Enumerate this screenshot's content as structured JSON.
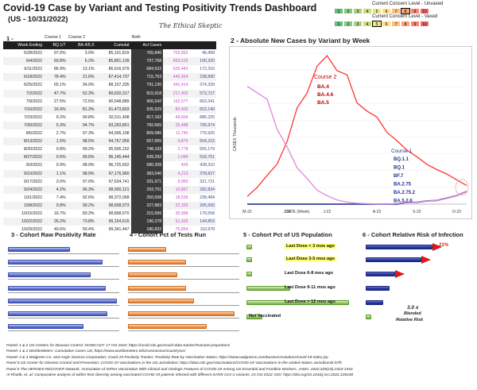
{
  "header": {
    "title": "Covid-19 Case by Variant and Testing Positivity Trends Dashboard",
    "subtitle": "(US - 10/31/2022)",
    "brand": "The Ethical Skeptic"
  },
  "concern_legend": {
    "unvaxed_label": "Current Concern Level - Unvaxed",
    "vaxed_label": "Current Concern Level - Vaxed",
    "unvaxed_cells": [
      "1",
      "2",
      "3",
      "4",
      "5",
      "6",
      "7",
      "8",
      "9",
      "10"
    ],
    "vaxed_cells": [
      "1",
      "2",
      "3",
      "4",
      "5",
      "6",
      "7",
      "8",
      "9",
      "10"
    ],
    "unvaxed_colors": [
      "#63be7b",
      "#86c97e",
      "#a9d27f",
      "#cbdc81",
      "#eee683",
      "#ffdd82",
      "#fdbf7b",
      "#fba276",
      "#f98570",
      "#f8696b"
    ],
    "vaxed_colors": [
      "#63be7b",
      "#86c97e",
      "#a9d27f",
      "#cbdc81",
      "#eee683",
      "#ffdd82",
      "#fdbf7b",
      "#fba276",
      "#f98570",
      "#f8696b"
    ],
    "unvaxed_marker": 8,
    "vaxed_marker": 5
  },
  "section1": {
    "label": "1 -",
    "group_headers": [
      "Course 1",
      "Course 2",
      "Both"
    ],
    "columns": [
      "Week Ending",
      "BQ.1/7",
      "BA.4/5.X",
      "Cumulat",
      "Act Cases",
      "",
      ""
    ],
    "rows": [
      [
        "5/28/2022",
        "97.0%",
        "3.0%",
        "85,101,819",
        "765,840",
        "702,862",
        "46,458"
      ],
      [
        "6/4/2022",
        "93.8%",
        "6.2%",
        "85,851,139",
        "797,758",
        "663,515",
        "100,325"
      ],
      [
        "6/11/2022",
        "86.9%",
        "13.1%",
        "86,616,979",
        "684,522",
        "625,442",
        "172,316"
      ],
      [
        "6/18/2022",
        "78.4%",
        "21.6%",
        "87,414,737",
        "715,753",
        "445,924",
        "238,890"
      ],
      [
        "6/25/2022",
        "65.1%",
        "34.9%",
        "88,107,335",
        "791,130",
        "341,414",
        "374,339"
      ],
      [
        "7/2/2022",
        "47.7%",
        "52.3%",
        "89,620,317",
        "815,918",
        "217,402",
        "573,727"
      ],
      [
        "7/9/2022",
        "27.5%",
        "72.5%",
        "90,548,889",
        "906,542",
        "152,577",
        "663,341"
      ],
      [
        "7/16/2022",
        "16.9%",
        "81.3%",
        "91,473,803",
        "935,929",
        "83,402",
        "823,140"
      ],
      [
        "7/23/2022",
        "9.2%",
        "90.8%",
        "92,511,408",
        "817,162",
        "49,604",
        "886,325"
      ],
      [
        "7/30/2022",
        "5.3%",
        "94.7%",
        "93,293,851",
        "782,665",
        "25,488",
        "795,974"
      ],
      [
        "8/6/2022",
        "2.7%",
        "97.3%",
        "94,006,108",
        "809,086",
        "11,740",
        "770,925"
      ],
      [
        "8/13/2022",
        "1.5%",
        "98.5%",
        "94,757,959",
        "557,955",
        "4,875",
        "604,223"
      ],
      [
        "8/20/2022",
        "0.8%",
        "99.2%",
        "95,506,152",
        "748,193",
        "2,778",
        "555,179"
      ],
      [
        "8/27/2022",
        "0.5%",
        "99.5%",
        "96,145,444",
        "639,292",
        "1,049",
        "518,751"
      ],
      [
        "9/3/2022",
        "0.9%",
        "98.9%",
        "96,725,652",
        "580,208",
        "429",
        "428,310"
      ],
      [
        "9/10/2022",
        "1.1%",
        "98.9%",
        "97,176,960",
        "383,040",
        "4,213",
        "378,827"
      ],
      [
        "9/17/2022",
        "3.0%",
        "97.0%",
        "97,634,741",
        "331,671",
        "9,950",
        "321,721"
      ],
      [
        "9/24/2022",
        "4.2%",
        "96.3%",
        "98,000,121",
        "293,701",
        "10,867",
        "282,834"
      ],
      [
        "10/1/2022",
        "7.4%",
        "92.6%",
        "98,372,068",
        "250,508",
        "18,539",
        "238,484"
      ],
      [
        "10/8/2022",
        "9.8%",
        "90.2%",
        "98,658,073",
        "227,883",
        "22,333",
        "205,550"
      ],
      [
        "10/15/2022",
        "16.7%",
        "83.3%",
        "98,898,670",
        "215,556",
        "35,998",
        "179,558"
      ],
      [
        "10/22/2022",
        "26.2%",
        "73.8%",
        "99,154,615",
        "196,278",
        "51,425",
        "144,853"
      ],
      [
        "10/29/2022",
        "40.6%",
        "59.4%",
        "99,341,447",
        "186,832",
        "75,854",
        "110,978"
      ]
    ]
  },
  "section2": {
    "label": "2 - Absolute New Cases by Variant by Week",
    "ylabel": "CASES Thousands",
    "xlabel": "DATE (Week)",
    "course2_label": "Course 2",
    "course2_variants": [
      "BA.4",
      "BA.4.6",
      "BA.5"
    ],
    "course1_label": "Course 1",
    "course1_variants": [
      "BQ.1.1",
      "BQ.1",
      "BF.7",
      "BA.2.75",
      "BA.2.75.2",
      "BA.5.2.6"
    ],
    "tick_labels": [
      "M-22",
      "J-22",
      "J-22",
      "A-22",
      "S-22",
      "O-22"
    ]
  },
  "chart_data": {
    "type": "line",
    "x": [
      "5/28/2022",
      "6/4/2022",
      "6/11/2022",
      "6/18/2022",
      "6/25/2022",
      "7/2/2022",
      "7/9/2022",
      "7/16/2022",
      "7/23/2022",
      "7/30/2022",
      "8/6/2022",
      "8/13/2022",
      "8/20/2022",
      "8/27/2022",
      "9/3/2022",
      "9/10/2022",
      "9/17/2022",
      "9/24/2022",
      "10/1/2022",
      "10/8/2022",
      "10/15/2022",
      "10/22/2022",
      "10/29/2022"
    ],
    "series": [
      {
        "name": "Course 2",
        "color": "#ff3333",
        "values": [
          46,
          100,
          172,
          239,
          374,
          574,
          663,
          823,
          886,
          796,
          771,
          604,
          555,
          519,
          428,
          379,
          322,
          283,
          238,
          206,
          180,
          145,
          111
        ]
      },
      {
        "name": "Course 1",
        "color": "#334499",
        "values": [
          0,
          0,
          0,
          0,
          0,
          0,
          0,
          0,
          0,
          0,
          0,
          0,
          0,
          0,
          0,
          0,
          10,
          11,
          19,
          22,
          36,
          51,
          76
        ]
      },
      {
        "name": "",
        "color": "#dd88dd",
        "values": [
          703,
          664,
          625,
          446,
          341,
          217,
          153,
          83,
          50,
          25,
          12,
          5,
          3,
          1,
          0,
          4,
          10,
          11,
          19,
          22,
          36,
          51,
          76
        ]
      }
    ],
    "ylim": [
      0,
      900
    ],
    "xlabel": "DATE (Week)",
    "ylabel": "CASES Thousands"
  },
  "section3": {
    "label": "3 - Cohort Raw Positivity Rate",
    "values": [
      0.56,
      0.85,
      0.74,
      0.88,
      0.98,
      0.89,
      0.68
    ]
  },
  "section4": {
    "label": "4 - Cohort Pct of Tests Run",
    "values": [
      0.34,
      0.52,
      0.44,
      0.52,
      0.59,
      0.96,
      0.71
    ]
  },
  "section5": {
    "label": "5 - Cohort Pct of US Population",
    "cohorts": [
      {
        "label": "Last Dose < 3 mos ago",
        "value": 0.05,
        "highlight": true
      },
      {
        "label": "Last Dose 3-5 mos ago",
        "value": 0.05,
        "highlight": true
      },
      {
        "label": "Last Dose 6-8 mos ago",
        "value": 0.05,
        "highlight": false
      },
      {
        "label": "Last Dose 9-11 mos ago",
        "value": 0.39,
        "highlight": false
      },
      {
        "label": "Last Dose > 12 mos ago",
        "value": 0.92,
        "highlight": false
      },
      {
        "label": "Not Vaccinated",
        "value": 0.14,
        "highlight": false
      }
    ]
  },
  "section6": {
    "label": "6 - Cohort Relative Risk of Infection",
    "values": [
      0.76,
      0.64,
      0.34,
      0.27,
      0.2,
      0.06
    ],
    "pct_label": "21%",
    "note_line1": "3.0 x",
    "note_line2": "Blended",
    "note_line3": "Relative Risk"
  },
  "footnotes": [
    "Panels 1 & 2  US Centers for Disease Control: NOWCAST; 17 Oct 2022; https://covid.cdc.gov/covid-data-tracker/#variant-proportions",
    "Panels 1 & 2  WorldoMeters: Cumulative Cases US; https://www.worldometers.info/coronavirus/country/us/",
    "Panels 3 & 4  Walgreen Co. and Aegis Science Corporation; Covid-19 Positivity Tracker: Positivity Rate by Vaccination Status; https://www.walgreens.com/businesssolutions/covid-19-index.jsp",
    "Panel 5  US Center for Disease Control and Prevention: COVID-19 Vaccinations in the US,Jurisdiction; https://data.cdc.gov/Vaccinations/COVID-19-Vaccinations-in-the-United-States-Jurisdi/unsk-b7fc",
    "Panel 6  The HEROES-RECOVER Network. Association of mRNA Vaccination With Clinical and Virologic Features of COVID-19 Among US Essential and Frontline Workers. JAMA. 2022;328(15):1523-1533",
    "Al-Khatib, et. al; Comparative analysis of within-host diversity among vaccinated COVID-19 patients infected with different SARS-CoV-2 variants; 24 Oct 2022; DOI: https://doi.org/10.1016/j.isci.2022.105438"
  ]
}
